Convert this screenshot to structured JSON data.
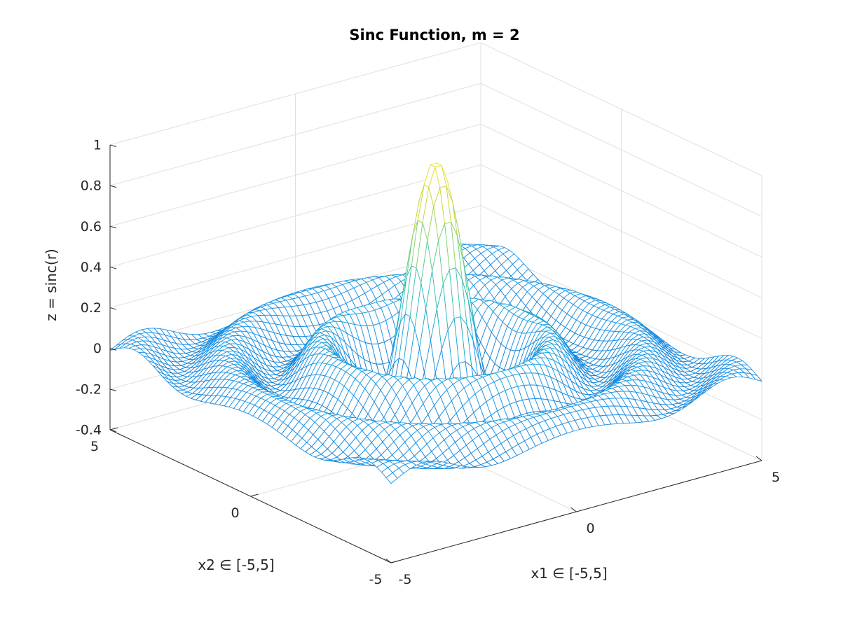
{
  "chart_data": {
    "type": "mesh",
    "title": "Sinc Function, m = 2",
    "xlabel": "x1 ∈ [-5,5]",
    "ylabel": "x2 ∈ [-5,5]",
    "zlabel": "z = sinc(r)",
    "function": "sinc(r) = sin(pi r)/(pi r), r = sqrt(x1^2 + x2^2)",
    "grid_points_per_side": 60,
    "xlim": [
      -5,
      5
    ],
    "ylim": [
      -5,
      5
    ],
    "zlim": [
      -0.4,
      1
    ],
    "xticks": [
      -5,
      0,
      5
    ],
    "yticks": [
      -5,
      0,
      5
    ],
    "zticks": [
      -0.4,
      -0.2,
      0,
      0.2,
      0.4,
      0.6,
      0.8,
      1
    ],
    "xtick_labels": [
      "-5",
      "0",
      "5"
    ],
    "ytick_labels": [
      "-5",
      "0",
      "5"
    ],
    "ztick_labels": [
      "-0.4",
      "-0.2",
      "0",
      "0.2",
      "0.4",
      "0.6",
      "0.8",
      "1"
    ],
    "colormap": [
      "#0072bd",
      "#1e90e8",
      "#23b8c8",
      "#5fd28a",
      "#c9d43c",
      "#f9e622"
    ],
    "grid": true,
    "view": "3-d, azimuth -37.5°, elevation 30°"
  }
}
